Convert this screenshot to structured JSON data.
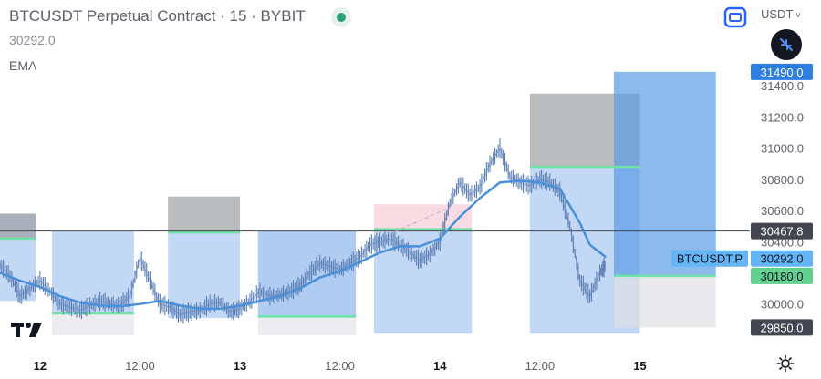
{
  "header": {
    "title": "BTCUSDT Perpetual Contract · 15 · BYBIT",
    "last_price": "30292.0",
    "indicator": "EMA",
    "currency": "USDT"
  },
  "colors": {
    "ema": "#4a90d9",
    "candle": "#5b7fb6",
    "box_blue": "#a9c8ef",
    "box_gray": "#b3b4b8",
    "box_pink": "#f7cdd7",
    "green_line": "#6ee3a5",
    "axis_text": "#5d606b"
  },
  "chart_data": {
    "type": "candlestick",
    "symbol": "BTCUSDT Perpetual Contract",
    "interval": "15",
    "exchange": "BYBIT",
    "ylim": [
      29700,
      31600
    ],
    "xlim": [
      0,
      37.5
    ],
    "x_ticks": [
      {
        "x": 2,
        "label": "12"
      },
      {
        "x": 7,
        "label": "12:00"
      },
      {
        "x": 12,
        "label": "13"
      },
      {
        "x": 17,
        "label": "12:00"
      },
      {
        "x": 22,
        "label": "14"
      },
      {
        "x": 27,
        "label": "12:00"
      },
      {
        "x": 32,
        "label": "15"
      }
    ],
    "y_ticks": [
      30000,
      30200,
      30400,
      30600,
      30800,
      31000,
      31200,
      31400
    ],
    "y_tick_labels": [
      "30000.0",
      "30200.0",
      "30400.0",
      "30600.0",
      "30800.0",
      "31000.0",
      "31200.0",
      "31400.0"
    ],
    "price_tags": [
      {
        "value": 31490.0,
        "label": "31490.0",
        "color": "#2f7fe0",
        "text_color": "#ffffff"
      },
      {
        "value": 30467.8,
        "label": "30467.8",
        "color": "#434651",
        "text_color": "#ffffff"
      },
      {
        "value": 30292.0,
        "label": "30292.0",
        "color": "#64b5f6",
        "text_color": "#131722",
        "symbol": "BTCUSDT.P"
      },
      {
        "value": 30180.0,
        "label": "30180.0",
        "color": "#61d08f",
        "text_color": "#131722"
      },
      {
        "value": 29850.0,
        "label": "29850.0",
        "color": "#434651",
        "text_color": "#ffffff"
      }
    ],
    "horizontal_line": 30467.8,
    "close_series": [
      [
        0,
        30250
      ],
      [
        0.5,
        30180
      ],
      [
        1,
        30050
      ],
      [
        1.5,
        30100
      ],
      [
        2,
        30150
      ],
      [
        2.5,
        30080
      ],
      [
        3,
        30000
      ],
      [
        3.5,
        29980
      ],
      [
        4,
        29960
      ],
      [
        4.5,
        29990
      ],
      [
        5,
        30020
      ],
      [
        5.5,
        30000
      ],
      [
        6,
        29990
      ],
      [
        6.5,
        30050
      ],
      [
        7,
        30300
      ],
      [
        7.5,
        30150
      ],
      [
        8,
        30000
      ],
      [
        8.5,
        29980
      ],
      [
        9,
        29930
      ],
      [
        9.5,
        29950
      ],
      [
        10,
        29960
      ],
      [
        10.5,
        30000
      ],
      [
        11,
        30010
      ],
      [
        11.5,
        29950
      ],
      [
        12,
        29970
      ],
      [
        12.5,
        30020
      ],
      [
        13,
        30080
      ],
      [
        13.5,
        30050
      ],
      [
        14,
        30060
      ],
      [
        14.5,
        30080
      ],
      [
        15,
        30120
      ],
      [
        15.5,
        30200
      ],
      [
        16,
        30260
      ],
      [
        16.5,
        30240
      ],
      [
        17,
        30220
      ],
      [
        17.5,
        30260
      ],
      [
        18,
        30300
      ],
      [
        18.5,
        30380
      ],
      [
        19,
        30400
      ],
      [
        19.5,
        30420
      ],
      [
        20,
        30380
      ],
      [
        20.5,
        30330
      ],
      [
        21,
        30280
      ],
      [
        21.5,
        30320
      ],
      [
        22,
        30400
      ],
      [
        22.5,
        30650
      ],
      [
        23,
        30780
      ],
      [
        23.5,
        30700
      ],
      [
        24,
        30750
      ],
      [
        24.5,
        30900
      ],
      [
        25,
        31000
      ],
      [
        25.5,
        30820
      ],
      [
        26,
        30780
      ],
      [
        26.5,
        30760
      ],
      [
        27,
        30800
      ],
      [
        27.5,
        30780
      ],
      [
        28,
        30720
      ],
      [
        28.5,
        30500
      ],
      [
        29,
        30150
      ],
      [
        29.5,
        30050
      ],
      [
        30,
        30200
      ],
      [
        30.3,
        30250
      ]
    ],
    "ema_series": [
      [
        0,
        30200
      ],
      [
        1,
        30150
      ],
      [
        2,
        30110
      ],
      [
        3,
        30050
      ],
      [
        4,
        30010
      ],
      [
        5,
        29990
      ],
      [
        6,
        29985
      ],
      [
        7,
        30000
      ],
      [
        8,
        30020
      ],
      [
        9,
        29990
      ],
      [
        10,
        29970
      ],
      [
        11,
        29970
      ],
      [
        12,
        29990
      ],
      [
        13,
        30020
      ],
      [
        14,
        30050
      ],
      [
        15,
        30100
      ],
      [
        16,
        30170
      ],
      [
        17,
        30210
      ],
      [
        18,
        30270
      ],
      [
        19,
        30330
      ],
      [
        20,
        30370
      ],
      [
        21,
        30370
      ],
      [
        22,
        30420
      ],
      [
        23,
        30560
      ],
      [
        24,
        30680
      ],
      [
        25,
        30780
      ],
      [
        26,
        30790
      ],
      [
        27,
        30780
      ],
      [
        28,
        30740
      ],
      [
        29,
        30520
      ],
      [
        29.5,
        30380
      ],
      [
        30,
        30330
      ],
      [
        30.3,
        30300
      ]
    ],
    "boxes": [
      {
        "x0": 0.0,
        "x1": 1.8,
        "top": 30580,
        "bottom": 30020,
        "color": "#a9c8ef"
      },
      {
        "x0": 0.0,
        "x1": 1.8,
        "top": 30580,
        "bottom": 30420,
        "color": "#9e9fa3"
      },
      {
        "x0": 2.6,
        "x1": 6.7,
        "top": 30467,
        "bottom": 29940,
        "color": "#a9c8ef"
      },
      {
        "x0": 2.6,
        "x1": 6.7,
        "top": 29940,
        "bottom": 29800,
        "color": "#e6e6e8"
      },
      {
        "x0": 8.4,
        "x1": 12.0,
        "top": 30467,
        "bottom": 29910,
        "color": "#a9c8ef"
      },
      {
        "x0": 8.4,
        "x1": 12.0,
        "top": 30690,
        "bottom": 30460,
        "color": "#9e9fa3"
      },
      {
        "x0": 12.9,
        "x1": 17.8,
        "top": 30467,
        "bottom": 29920,
        "color": "#8fb6ea"
      },
      {
        "x0": 12.9,
        "x1": 17.8,
        "top": 29920,
        "bottom": 29800,
        "color": "#e6e6e8"
      },
      {
        "x0": 18.7,
        "x1": 23.6,
        "top": 30480,
        "bottom": 29810,
        "color": "#a9c8ef"
      },
      {
        "x0": 18.7,
        "x1": 23.6,
        "top": 30640,
        "bottom": 30480,
        "color": "#f7cdd7"
      },
      {
        "x0": 26.5,
        "x1": 32.0,
        "top": 30880,
        "bottom": 29810,
        "color": "#a9c8ef"
      },
      {
        "x0": 26.5,
        "x1": 32.0,
        "top": 31350,
        "bottom": 30880,
        "color": "#9e9fa3"
      },
      {
        "x0": 30.7,
        "x1": 35.8,
        "top": 31490,
        "bottom": 30180,
        "color": "#5b9de6"
      },
      {
        "x0": 30.7,
        "x1": 35.8,
        "top": 30180,
        "bottom": 29850,
        "color": "#e0e0e2"
      }
    ],
    "green_lines": [
      {
        "x0": 0.0,
        "x1": 1.8,
        "y": 30420
      },
      {
        "x0": 2.6,
        "x1": 6.7,
        "y": 29940
      },
      {
        "x0": 8.4,
        "x1": 12.0,
        "y": 30460
      },
      {
        "x0": 12.9,
        "x1": 17.8,
        "y": 29920
      },
      {
        "x0": 18.7,
        "x1": 23.6,
        "y": 30480
      },
      {
        "x0": 26.5,
        "x1": 32.0,
        "y": 30880
      },
      {
        "x0": 30.7,
        "x1": 35.8,
        "y": 30180
      }
    ],
    "dashed_line": {
      "x0": 19.5,
      "x1": 22.5,
      "y0": 30450,
      "y1": 30620
    }
  }
}
